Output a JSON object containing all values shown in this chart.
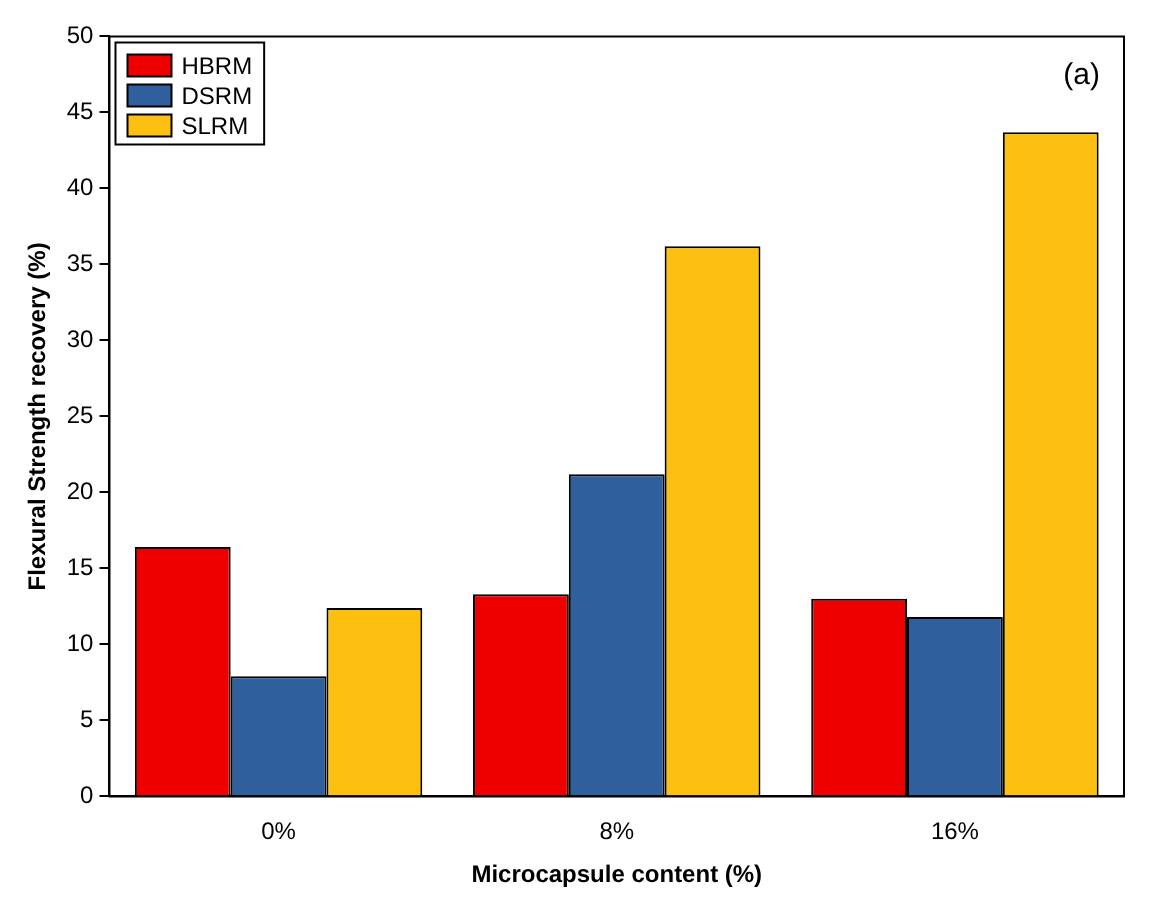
{
  "chart_data": {
    "type": "bar",
    "xlabel": "Microcapsule content (%)",
    "ylabel": "Flexural Strength recovery (%)",
    "annotations": [
      "(a)"
    ],
    "categories": [
      "0%",
      "8%",
      "16%"
    ],
    "series": [
      {
        "name": "HBRM",
        "color": "#ee0000",
        "values": [
          16.4,
          13.3,
          13.0
        ]
      },
      {
        "name": "DSRM",
        "color": "#2f5f9c",
        "values": [
          7.9,
          21.2,
          11.8
        ]
      },
      {
        "name": "SLRM",
        "color": "#fdc010",
        "values": [
          12.4,
          36.2,
          43.7
        ]
      }
    ],
    "ylim": [
      0,
      50
    ],
    "yticks": [
      0,
      5,
      10,
      15,
      20,
      25,
      30,
      35,
      40,
      45,
      50
    ],
    "grid": false,
    "legend": "top left"
  }
}
